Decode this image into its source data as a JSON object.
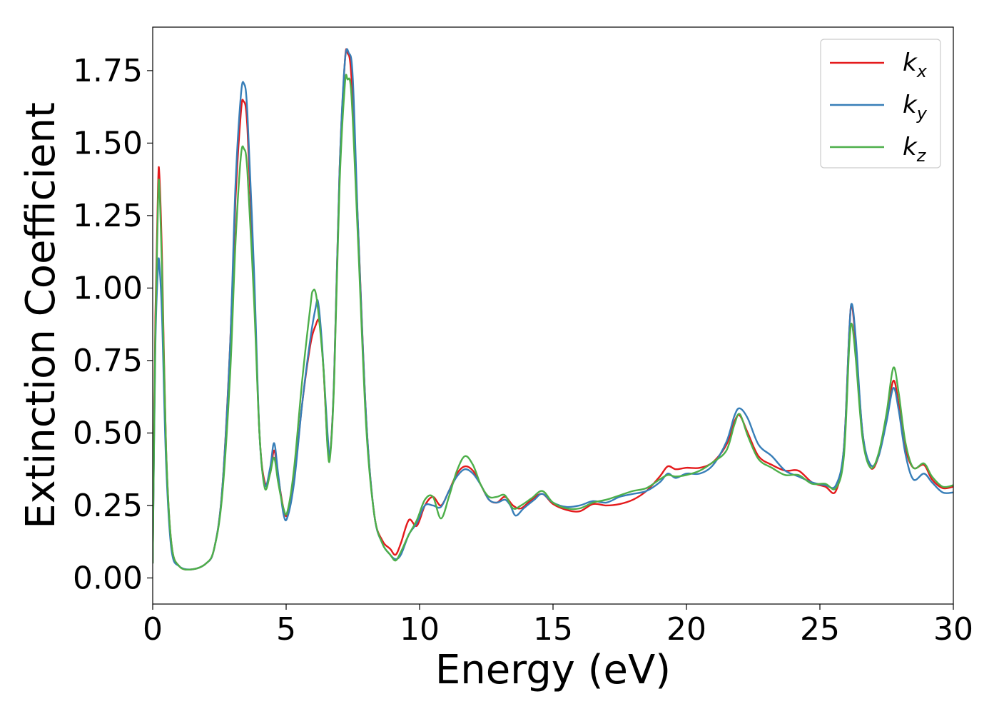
{
  "chart_data": {
    "type": "line",
    "title": "",
    "xlabel": "Energy (eV)",
    "ylabel": "Extinction Coefficient",
    "xlim": [
      0,
      30
    ],
    "ylim": [
      -0.09,
      1.9
    ],
    "xticks": [
      0,
      5,
      10,
      15,
      20,
      25,
      30
    ],
    "xtick_labels": [
      "0",
      "5",
      "10",
      "15",
      "20",
      "25",
      "30"
    ],
    "yticks": [
      0.0,
      0.25,
      0.5,
      0.75,
      1.0,
      1.25,
      1.5,
      1.75
    ],
    "ytick_labels": [
      "0.00",
      "0.25",
      "0.50",
      "0.75",
      "1.00",
      "1.25",
      "1.50",
      "1.75"
    ],
    "grid": false,
    "legend_position": "top-right",
    "series": [
      {
        "name": "k",
        "subscript": "x",
        "color": "#e41a1c",
        "points": [
          [
            0,
            0.05
          ],
          [
            0.1,
            0.9
          ],
          [
            0.2,
            1.35
          ],
          [
            0.25,
            1.39
          ],
          [
            0.35,
            1.1
          ],
          [
            0.5,
            0.45
          ],
          [
            0.7,
            0.12
          ],
          [
            1,
            0.04
          ],
          [
            1.5,
            0.03
          ],
          [
            2,
            0.05
          ],
          [
            2.3,
            0.1
          ],
          [
            2.6,
            0.3
          ],
          [
            2.9,
            0.8
          ],
          [
            3.1,
            1.3
          ],
          [
            3.3,
            1.6
          ],
          [
            3.4,
            1.645
          ],
          [
            3.55,
            1.55
          ],
          [
            3.8,
            1.0
          ],
          [
            4.0,
            0.5
          ],
          [
            4.2,
            0.33
          ],
          [
            4.4,
            0.36
          ],
          [
            4.55,
            0.44
          ],
          [
            4.7,
            0.35
          ],
          [
            4.9,
            0.24
          ],
          [
            5.05,
            0.22
          ],
          [
            5.3,
            0.34
          ],
          [
            5.6,
            0.6
          ],
          [
            5.9,
            0.8
          ],
          [
            6.1,
            0.87
          ],
          [
            6.25,
            0.88
          ],
          [
            6.4,
            0.72
          ],
          [
            6.55,
            0.46
          ],
          [
            6.65,
            0.43
          ],
          [
            6.8,
            0.7
          ],
          [
            7.0,
            1.4
          ],
          [
            7.2,
            1.78
          ],
          [
            7.3,
            1.81
          ],
          [
            7.45,
            1.72
          ],
          [
            7.7,
            1.2
          ],
          [
            8.0,
            0.55
          ],
          [
            8.3,
            0.22
          ],
          [
            8.6,
            0.13
          ],
          [
            8.9,
            0.1
          ],
          [
            9.1,
            0.08
          ],
          [
            9.3,
            0.12
          ],
          [
            9.6,
            0.2
          ],
          [
            9.9,
            0.18
          ],
          [
            10.2,
            0.25
          ],
          [
            10.5,
            0.28
          ],
          [
            10.8,
            0.25
          ],
          [
            11.1,
            0.3
          ],
          [
            11.4,
            0.36
          ],
          [
            11.7,
            0.385
          ],
          [
            12.0,
            0.37
          ],
          [
            12.3,
            0.32
          ],
          [
            12.6,
            0.27
          ],
          [
            12.9,
            0.26
          ],
          [
            13.2,
            0.28
          ],
          [
            13.5,
            0.25
          ],
          [
            13.8,
            0.24
          ],
          [
            14.2,
            0.27
          ],
          [
            14.6,
            0.29
          ],
          [
            15.0,
            0.255
          ],
          [
            15.5,
            0.235
          ],
          [
            16.0,
            0.23
          ],
          [
            16.5,
            0.255
          ],
          [
            17.0,
            0.25
          ],
          [
            17.5,
            0.255
          ],
          [
            18.0,
            0.27
          ],
          [
            18.5,
            0.3
          ],
          [
            19.0,
            0.35
          ],
          [
            19.3,
            0.385
          ],
          [
            19.6,
            0.375
          ],
          [
            20.0,
            0.38
          ],
          [
            20.5,
            0.38
          ],
          [
            21.0,
            0.4
          ],
          [
            21.5,
            0.46
          ],
          [
            21.8,
            0.54
          ],
          [
            22.0,
            0.56
          ],
          [
            22.3,
            0.5
          ],
          [
            22.7,
            0.42
          ],
          [
            23.2,
            0.39
          ],
          [
            23.7,
            0.37
          ],
          [
            24.2,
            0.37
          ],
          [
            24.7,
            0.33
          ],
          [
            25.2,
            0.315
          ],
          [
            25.6,
            0.3
          ],
          [
            25.9,
            0.45
          ],
          [
            26.1,
            0.85
          ],
          [
            26.2,
            0.94
          ],
          [
            26.35,
            0.8
          ],
          [
            26.6,
            0.5
          ],
          [
            26.9,
            0.38
          ],
          [
            27.2,
            0.42
          ],
          [
            27.5,
            0.55
          ],
          [
            27.75,
            0.68
          ],
          [
            27.95,
            0.6
          ],
          [
            28.2,
            0.45
          ],
          [
            28.5,
            0.38
          ],
          [
            28.9,
            0.39
          ],
          [
            29.2,
            0.34
          ],
          [
            29.6,
            0.31
          ],
          [
            30,
            0.315
          ]
        ]
      },
      {
        "name": "k",
        "subscript": "y",
        "color": "#377eb8",
        "points": [
          [
            0,
            0.05
          ],
          [
            0.1,
            0.8
          ],
          [
            0.2,
            1.07
          ],
          [
            0.25,
            1.08
          ],
          [
            0.35,
            0.9
          ],
          [
            0.5,
            0.4
          ],
          [
            0.7,
            0.1
          ],
          [
            1,
            0.04
          ],
          [
            1.5,
            0.03
          ],
          [
            2,
            0.05
          ],
          [
            2.3,
            0.1
          ],
          [
            2.6,
            0.3
          ],
          [
            2.9,
            0.8
          ],
          [
            3.1,
            1.35
          ],
          [
            3.3,
            1.66
          ],
          [
            3.42,
            1.705
          ],
          [
            3.55,
            1.6
          ],
          [
            3.8,
            1.05
          ],
          [
            4.0,
            0.5
          ],
          [
            4.2,
            0.32
          ],
          [
            4.4,
            0.38
          ],
          [
            4.55,
            0.465
          ],
          [
            4.7,
            0.36
          ],
          [
            4.9,
            0.22
          ],
          [
            5.05,
            0.21
          ],
          [
            5.3,
            0.33
          ],
          [
            5.6,
            0.6
          ],
          [
            5.9,
            0.82
          ],
          [
            6.1,
            0.93
          ],
          [
            6.2,
            0.95
          ],
          [
            6.35,
            0.8
          ],
          [
            6.55,
            0.5
          ],
          [
            6.65,
            0.43
          ],
          [
            6.8,
            0.7
          ],
          [
            7.0,
            1.4
          ],
          [
            7.2,
            1.78
          ],
          [
            7.35,
            1.81
          ],
          [
            7.5,
            1.72
          ],
          [
            7.7,
            1.2
          ],
          [
            8.0,
            0.55
          ],
          [
            8.3,
            0.22
          ],
          [
            8.6,
            0.12
          ],
          [
            8.9,
            0.08
          ],
          [
            9.1,
            0.065
          ],
          [
            9.3,
            0.08
          ],
          [
            9.6,
            0.15
          ],
          [
            9.9,
            0.19
          ],
          [
            10.2,
            0.25
          ],
          [
            10.5,
            0.25
          ],
          [
            10.8,
            0.245
          ],
          [
            11.1,
            0.3
          ],
          [
            11.4,
            0.35
          ],
          [
            11.7,
            0.375
          ],
          [
            12.0,
            0.36
          ],
          [
            12.3,
            0.32
          ],
          [
            12.6,
            0.27
          ],
          [
            12.9,
            0.26
          ],
          [
            13.2,
            0.27
          ],
          [
            13.4,
            0.25
          ],
          [
            13.6,
            0.215
          ],
          [
            13.9,
            0.24
          ],
          [
            14.3,
            0.27
          ],
          [
            14.6,
            0.29
          ],
          [
            15.0,
            0.26
          ],
          [
            15.5,
            0.245
          ],
          [
            16.0,
            0.25
          ],
          [
            16.5,
            0.265
          ],
          [
            17.0,
            0.26
          ],
          [
            17.5,
            0.28
          ],
          [
            18.0,
            0.29
          ],
          [
            18.5,
            0.3
          ],
          [
            19.0,
            0.33
          ],
          [
            19.3,
            0.36
          ],
          [
            19.6,
            0.345
          ],
          [
            20.0,
            0.36
          ],
          [
            20.5,
            0.36
          ],
          [
            21.0,
            0.39
          ],
          [
            21.5,
            0.47
          ],
          [
            21.8,
            0.56
          ],
          [
            22.0,
            0.585
          ],
          [
            22.3,
            0.55
          ],
          [
            22.7,
            0.46
          ],
          [
            23.2,
            0.42
          ],
          [
            23.7,
            0.37
          ],
          [
            24.2,
            0.35
          ],
          [
            24.7,
            0.33
          ],
          [
            25.2,
            0.32
          ],
          [
            25.6,
            0.32
          ],
          [
            25.9,
            0.45
          ],
          [
            26.1,
            0.85
          ],
          [
            26.2,
            0.945
          ],
          [
            26.35,
            0.82
          ],
          [
            26.6,
            0.5
          ],
          [
            26.9,
            0.39
          ],
          [
            27.2,
            0.42
          ],
          [
            27.5,
            0.54
          ],
          [
            27.75,
            0.655
          ],
          [
            27.95,
            0.58
          ],
          [
            28.2,
            0.43
          ],
          [
            28.5,
            0.34
          ],
          [
            28.9,
            0.36
          ],
          [
            29.2,
            0.33
          ],
          [
            29.6,
            0.295
          ],
          [
            30,
            0.295
          ]
        ]
      },
      {
        "name": "k",
        "subscript": "z",
        "color": "#4daf4a",
        "points": [
          [
            0,
            0.05
          ],
          [
            0.1,
            0.85
          ],
          [
            0.2,
            1.3
          ],
          [
            0.25,
            1.35
          ],
          [
            0.35,
            1.05
          ],
          [
            0.5,
            0.45
          ],
          [
            0.7,
            0.12
          ],
          [
            1,
            0.04
          ],
          [
            1.5,
            0.03
          ],
          [
            2,
            0.05
          ],
          [
            2.3,
            0.1
          ],
          [
            2.6,
            0.28
          ],
          [
            2.9,
            0.7
          ],
          [
            3.1,
            1.15
          ],
          [
            3.3,
            1.45
          ],
          [
            3.42,
            1.48
          ],
          [
            3.55,
            1.4
          ],
          [
            3.8,
            0.95
          ],
          [
            4.0,
            0.5
          ],
          [
            4.2,
            0.31
          ],
          [
            4.4,
            0.36
          ],
          [
            4.55,
            0.415
          ],
          [
            4.7,
            0.33
          ],
          [
            4.9,
            0.24
          ],
          [
            5.05,
            0.23
          ],
          [
            5.3,
            0.38
          ],
          [
            5.6,
            0.68
          ],
          [
            5.9,
            0.93
          ],
          [
            6.0,
            0.99
          ],
          [
            6.15,
            0.96
          ],
          [
            6.4,
            0.72
          ],
          [
            6.55,
            0.45
          ],
          [
            6.65,
            0.42
          ],
          [
            6.8,
            0.68
          ],
          [
            7.0,
            1.35
          ],
          [
            7.2,
            1.7
          ],
          [
            7.3,
            1.72
          ],
          [
            7.45,
            1.66
          ],
          [
            7.7,
            1.15
          ],
          [
            8.0,
            0.52
          ],
          [
            8.3,
            0.22
          ],
          [
            8.6,
            0.12
          ],
          [
            8.9,
            0.08
          ],
          [
            9.1,
            0.06
          ],
          [
            9.3,
            0.09
          ],
          [
            9.6,
            0.15
          ],
          [
            9.9,
            0.2
          ],
          [
            10.2,
            0.27
          ],
          [
            10.5,
            0.28
          ],
          [
            10.8,
            0.205
          ],
          [
            11.1,
            0.28
          ],
          [
            11.4,
            0.37
          ],
          [
            11.7,
            0.42
          ],
          [
            12.0,
            0.39
          ],
          [
            12.3,
            0.32
          ],
          [
            12.6,
            0.28
          ],
          [
            12.9,
            0.28
          ],
          [
            13.2,
            0.285
          ],
          [
            13.5,
            0.24
          ],
          [
            13.8,
            0.25
          ],
          [
            14.2,
            0.275
          ],
          [
            14.6,
            0.3
          ],
          [
            15.0,
            0.26
          ],
          [
            15.5,
            0.24
          ],
          [
            16.0,
            0.24
          ],
          [
            16.5,
            0.26
          ],
          [
            17.0,
            0.27
          ],
          [
            17.5,
            0.285
          ],
          [
            18.0,
            0.3
          ],
          [
            18.5,
            0.31
          ],
          [
            19.0,
            0.34
          ],
          [
            19.3,
            0.355
          ],
          [
            19.6,
            0.35
          ],
          [
            20.0,
            0.355
          ],
          [
            20.5,
            0.37
          ],
          [
            21.0,
            0.4
          ],
          [
            21.5,
            0.44
          ],
          [
            21.8,
            0.53
          ],
          [
            22.0,
            0.565
          ],
          [
            22.3,
            0.49
          ],
          [
            22.7,
            0.41
          ],
          [
            23.2,
            0.38
          ],
          [
            23.7,
            0.355
          ],
          [
            24.2,
            0.355
          ],
          [
            24.7,
            0.325
          ],
          [
            25.2,
            0.325
          ],
          [
            25.6,
            0.31
          ],
          [
            25.9,
            0.42
          ],
          [
            26.1,
            0.8
          ],
          [
            26.2,
            0.875
          ],
          [
            26.35,
            0.75
          ],
          [
            26.6,
            0.48
          ],
          [
            26.9,
            0.38
          ],
          [
            27.2,
            0.43
          ],
          [
            27.5,
            0.57
          ],
          [
            27.75,
            0.725
          ],
          [
            27.95,
            0.64
          ],
          [
            28.2,
            0.47
          ],
          [
            28.5,
            0.38
          ],
          [
            28.9,
            0.395
          ],
          [
            29.2,
            0.35
          ],
          [
            29.6,
            0.315
          ],
          [
            30,
            0.32
          ]
        ]
      }
    ]
  }
}
